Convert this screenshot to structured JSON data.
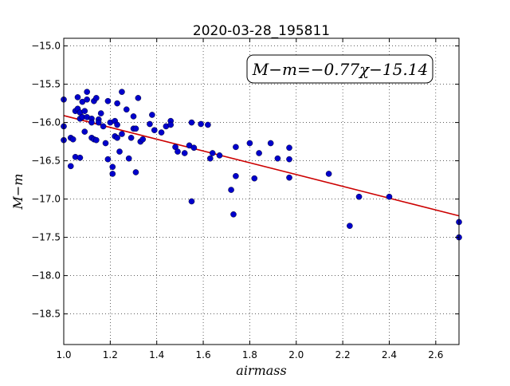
{
  "chart_data": {
    "type": "scatter",
    "title": "2020-03-28_195811",
    "xlabel": "airmass",
    "ylabel": "M−m",
    "xlim": [
      1.0,
      2.7
    ],
    "ylim": [
      -18.9,
      -14.9
    ],
    "y_inverted": true,
    "grid": true,
    "grid_style": "dotted",
    "xticks": [
      1.0,
      1.2,
      1.4,
      1.6,
      1.8,
      2.0,
      2.2,
      2.4,
      2.6
    ],
    "yticks": [
      -15.0,
      -15.5,
      -16.0,
      -16.5,
      -17.0,
      -17.5,
      -18.0,
      -18.5
    ],
    "xtick_labels": [
      "1.0",
      "1.2",
      "1.4",
      "1.6",
      "1.8",
      "2.0",
      "2.2",
      "2.4",
      "2.6"
    ],
    "ytick_labels": [
      "−15.0",
      "−15.5",
      "−16.0",
      "−16.5",
      "−17.0",
      "−17.5",
      "−18.0",
      "−18.5"
    ],
    "annotation": "M−m=−0.77χ−15.14",
    "fit": {
      "slope": -0.77,
      "intercept": -15.14,
      "color": "#cc0000"
    },
    "point_color": "#0000cc",
    "points": [
      [
        1.0,
        -15.7
      ],
      [
        1.0,
        -16.05
      ],
      [
        1.0,
        -16.23
      ],
      [
        1.03,
        -16.2
      ],
      [
        1.03,
        -16.57
      ],
      [
        1.04,
        -16.22
      ],
      [
        1.05,
        -16.45
      ],
      [
        1.05,
        -15.85
      ],
      [
        1.06,
        -15.82
      ],
      [
        1.06,
        -15.67
      ],
      [
        1.07,
        -15.87
      ],
      [
        1.07,
        -15.95
      ],
      [
        1.07,
        -16.46
      ],
      [
        1.08,
        -15.73
      ],
      [
        1.08,
        -15.93
      ],
      [
        1.09,
        -15.85
      ],
      [
        1.09,
        -16.12
      ],
      [
        1.1,
        -15.6
      ],
      [
        1.1,
        -15.7
      ],
      [
        1.1,
        -15.93
      ],
      [
        1.12,
        -15.95
      ],
      [
        1.12,
        -16.0
      ],
      [
        1.12,
        -16.2
      ],
      [
        1.13,
        -15.72
      ],
      [
        1.13,
        -16.22
      ],
      [
        1.14,
        -15.68
      ],
      [
        1.14,
        -16.23
      ],
      [
        1.15,
        -15.96
      ],
      [
        1.15,
        -16.0
      ],
      [
        1.16,
        -15.88
      ],
      [
        1.17,
        -16.05
      ],
      [
        1.18,
        -16.27
      ],
      [
        1.19,
        -15.72
      ],
      [
        1.19,
        -16.48
      ],
      [
        1.2,
        -16.0
      ],
      [
        1.21,
        -16.58
      ],
      [
        1.21,
        -16.67
      ],
      [
        1.22,
        -15.98
      ],
      [
        1.22,
        -16.18
      ],
      [
        1.23,
        -15.75
      ],
      [
        1.23,
        -16.03
      ],
      [
        1.23,
        -16.2
      ],
      [
        1.24,
        -16.38
      ],
      [
        1.25,
        -15.6
      ],
      [
        1.25,
        -16.15
      ],
      [
        1.27,
        -15.83
      ],
      [
        1.28,
        -16.47
      ],
      [
        1.29,
        -16.2
      ],
      [
        1.3,
        -15.92
      ],
      [
        1.3,
        -16.08
      ],
      [
        1.31,
        -16.08
      ],
      [
        1.31,
        -16.65
      ],
      [
        1.32,
        -15.68
      ],
      [
        1.33,
        -16.25
      ],
      [
        1.34,
        -16.22
      ],
      [
        1.37,
        -16.02
      ],
      [
        1.38,
        -15.9
      ],
      [
        1.39,
        -16.1
      ],
      [
        1.42,
        -16.13
      ],
      [
        1.44,
        -16.05
      ],
      [
        1.46,
        -15.98
      ],
      [
        1.46,
        -16.03
      ],
      [
        1.48,
        -16.32
      ],
      [
        1.49,
        -16.38
      ],
      [
        1.52,
        -16.4
      ],
      [
        1.54,
        -16.3
      ],
      [
        1.55,
        -16.0
      ],
      [
        1.55,
        -17.03
      ],
      [
        1.56,
        -16.33
      ],
      [
        1.59,
        -16.02
      ],
      [
        1.62,
        -16.03
      ],
      [
        1.63,
        -16.47
      ],
      [
        1.64,
        -16.4
      ],
      [
        1.67,
        -16.43
      ],
      [
        1.72,
        -16.88
      ],
      [
        1.73,
        -17.2
      ],
      [
        1.74,
        -16.32
      ],
      [
        1.74,
        -16.7
      ],
      [
        1.8,
        -16.27
      ],
      [
        1.82,
        -16.73
      ],
      [
        1.84,
        -16.4
      ],
      [
        1.89,
        -16.27
      ],
      [
        1.92,
        -16.47
      ],
      [
        1.97,
        -16.33
      ],
      [
        1.97,
        -16.48
      ],
      [
        1.97,
        -16.72
      ],
      [
        2.14,
        -16.67
      ],
      [
        2.23,
        -17.35
      ],
      [
        2.27,
        -16.97
      ],
      [
        2.4,
        -16.97
      ],
      [
        2.7,
        -17.3
      ],
      [
        2.7,
        -17.5
      ]
    ]
  }
}
